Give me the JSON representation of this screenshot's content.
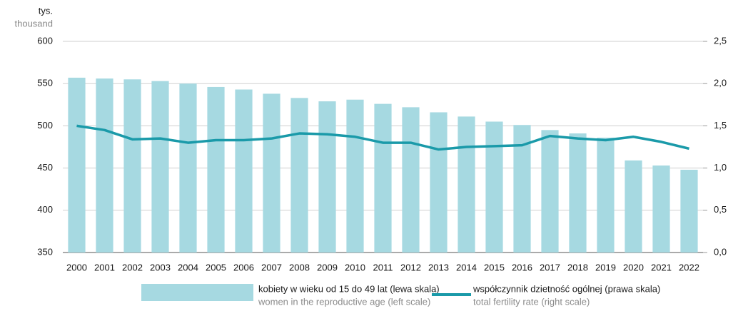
{
  "chart_data": {
    "type": "bar_line",
    "y_unit_label": "tys.",
    "y_unit_label_en": "thousand",
    "categories": [
      "2000",
      "2001",
      "2002",
      "2003",
      "2004",
      "2005",
      "2006",
      "2007",
      "2008",
      "2009",
      "2010",
      "2011",
      "2012",
      "2013",
      "2014",
      "2015",
      "2016",
      "2017",
      "2018",
      "2019",
      "2020",
      "2021",
      "2022"
    ],
    "series": [
      {
        "name": "kobiety w wieku od 15 do 49 lat (lewa skala)",
        "name_en": "women in the reproductive age (left scale)",
        "type": "bar",
        "color": "#a6d9e1",
        "values": [
          557,
          556,
          555,
          553,
          550,
          546,
          543,
          538,
          533,
          529,
          531,
          526,
          522,
          516,
          511,
          505,
          501,
          495,
          491,
          486,
          459,
          453,
          448
        ]
      },
      {
        "name": "współczynnik dzietność ogólnej (prawa skala)",
        "name_en": "total fertility rate (right scale)",
        "type": "line",
        "axis": "y2",
        "color": "#1a9aa9",
        "values": [
          1.5,
          1.45,
          1.34,
          1.35,
          1.3,
          1.33,
          1.33,
          1.35,
          1.41,
          1.4,
          1.37,
          1.3,
          1.3,
          1.22,
          1.25,
          1.26,
          1.27,
          1.38,
          1.35,
          1.33,
          1.37,
          1.31,
          1.23
        ]
      }
    ],
    "ylim": [
      350,
      600
    ],
    "yticks": [
      350,
      400,
      450,
      500,
      550,
      600
    ],
    "y2lim": [
      0,
      2.5
    ],
    "y2ticks": [
      {
        "value": 0,
        "label": "0,0"
      },
      {
        "value": 0.5,
        "label": "0,5"
      },
      {
        "value": 1,
        "label": "1,0"
      },
      {
        "value": 1.5,
        "label": "1,5"
      },
      {
        "value": 2,
        "label": "2,0"
      },
      {
        "value": 2.5,
        "label": "2,5"
      }
    ],
    "grid": true
  }
}
